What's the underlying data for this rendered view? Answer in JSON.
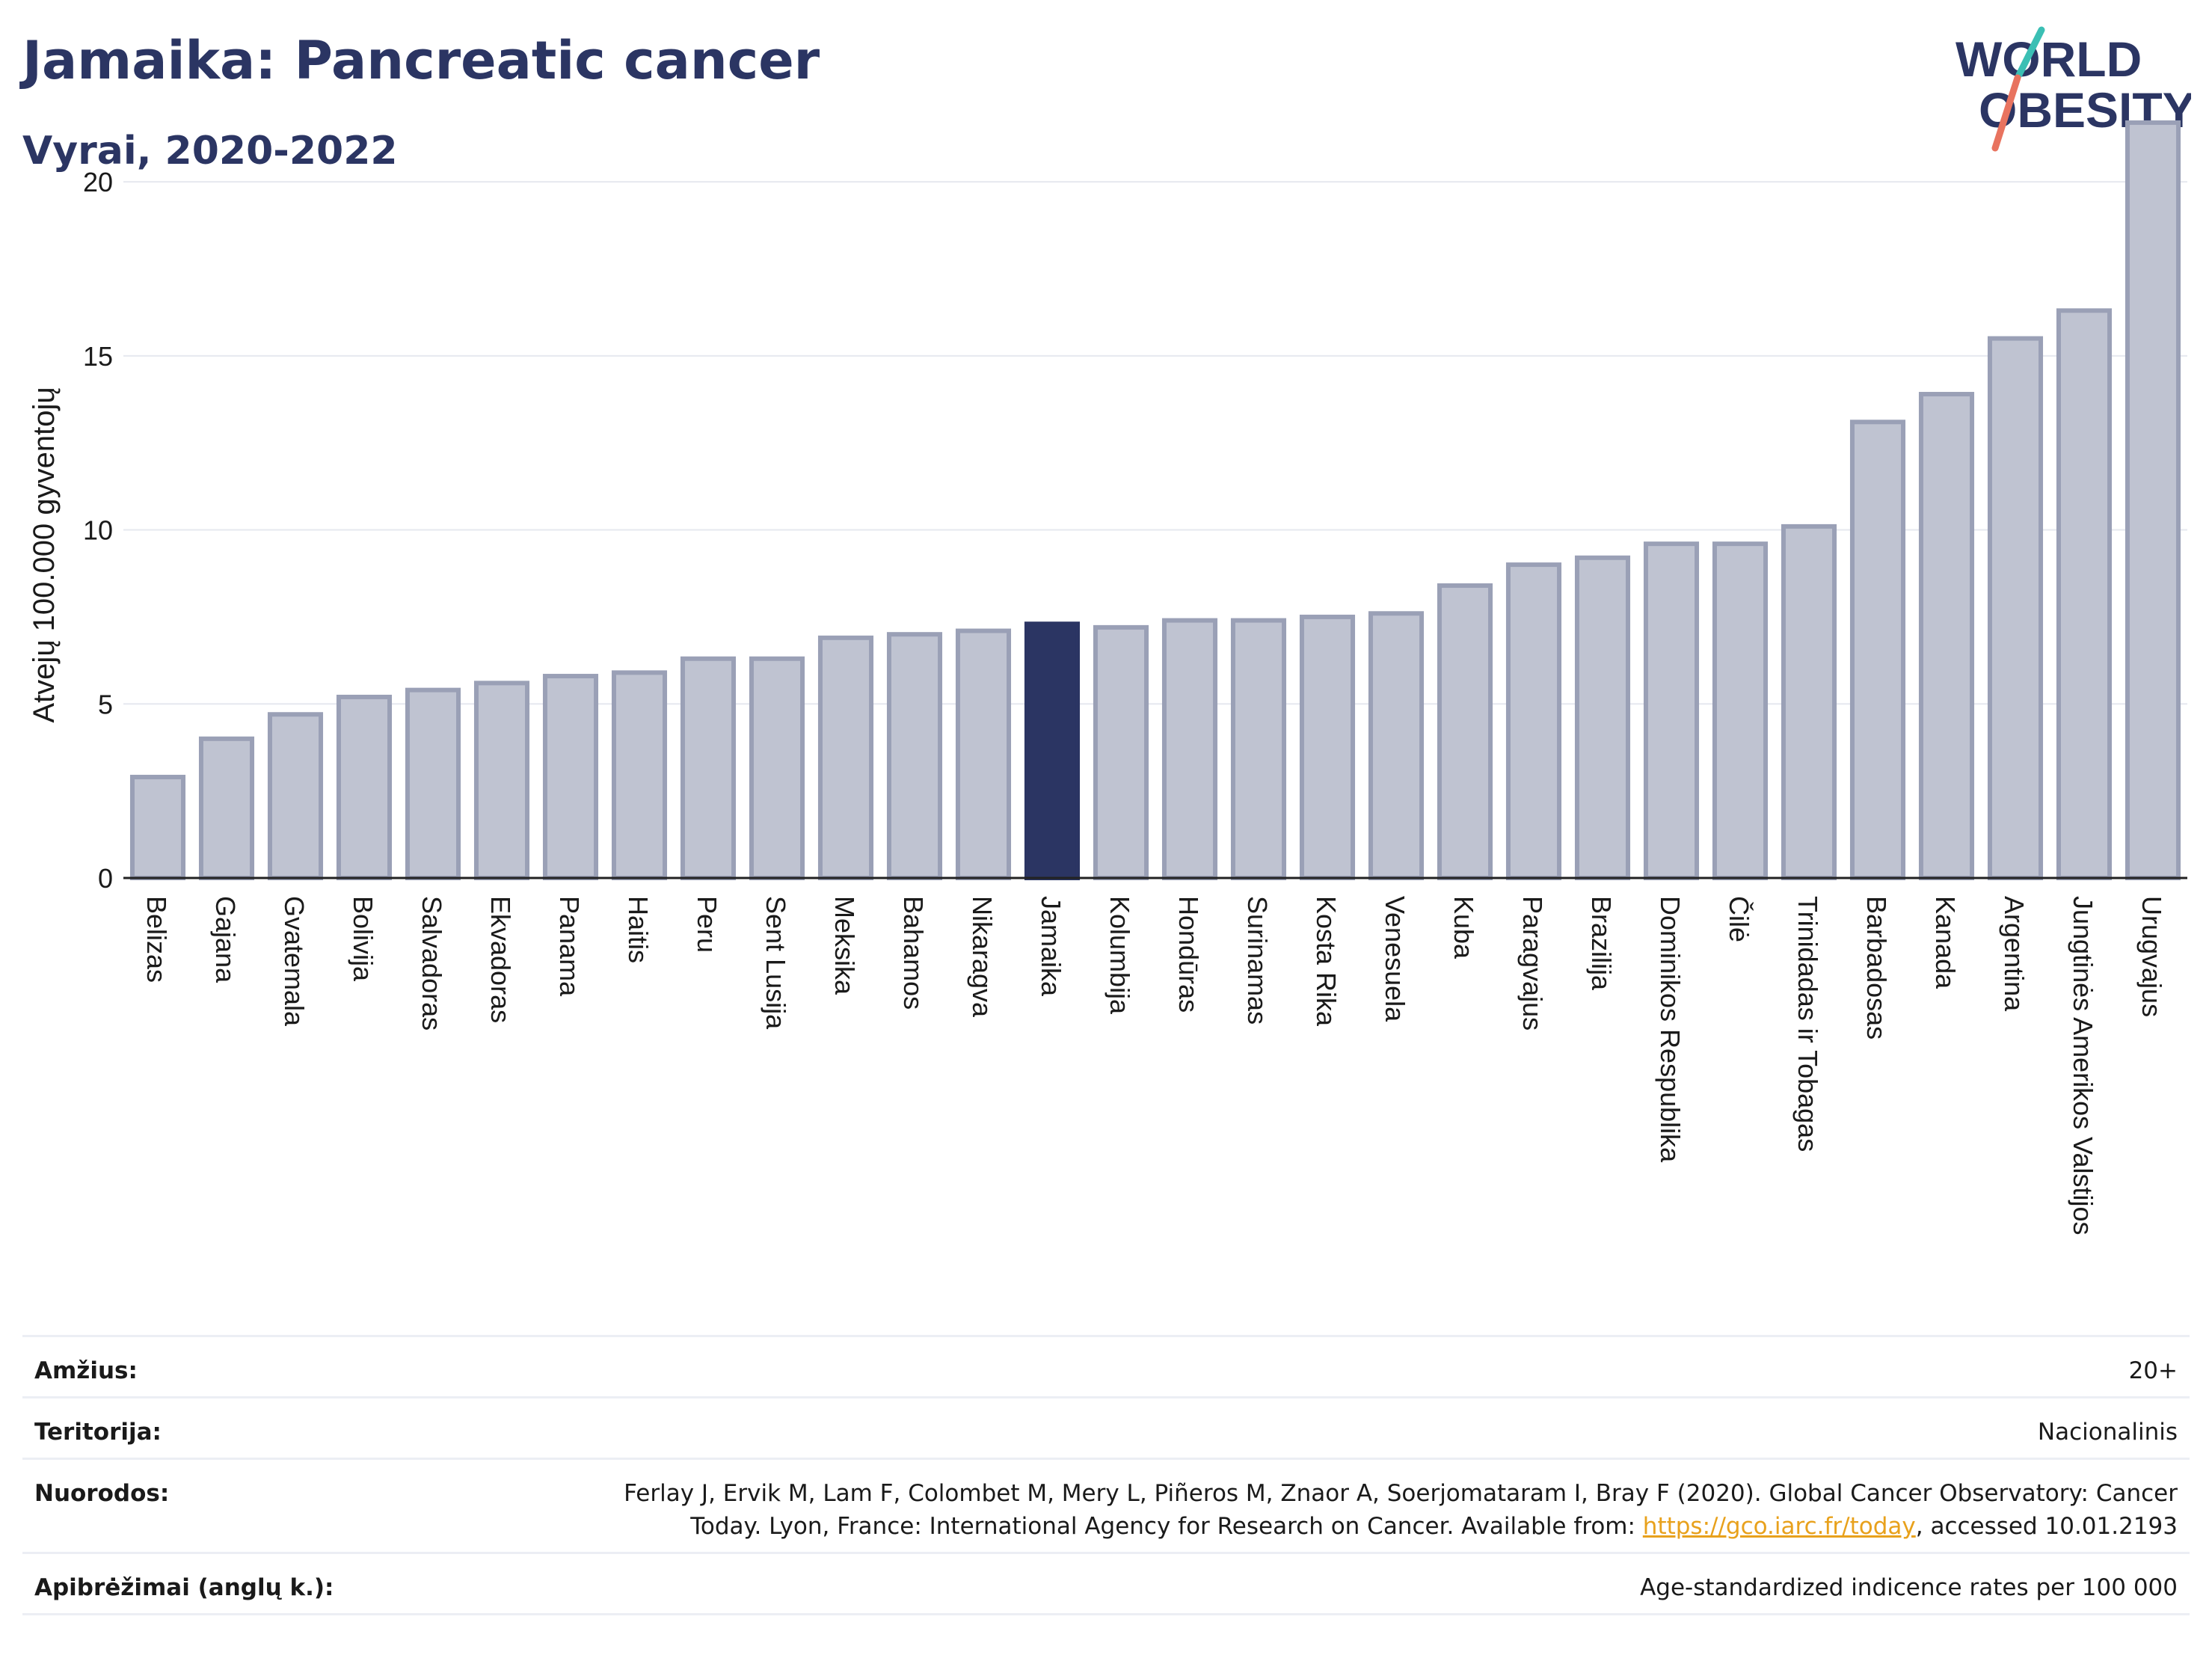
{
  "title": "Jamaika: Pancreatic cancer",
  "subtitle": "Vyrai, 2020-2022",
  "logo": {
    "line1": "WORLD",
    "line2": "OBESITY"
  },
  "colors": {
    "bar": "#bfc3d1",
    "bar_stroke": "#9aa0b6",
    "highlight": "#2b3563",
    "accent_teal": "#3bbfb4",
    "accent_red": "#e8735f"
  },
  "chart_data": {
    "type": "bar",
    "ylabel": "Atvejų 100.000 gyventojų",
    "ylim": [
      0,
      22
    ],
    "yticks": [
      0,
      5,
      10,
      15,
      20
    ],
    "highlight": "Jamaika",
    "categories": [
      "Belizas",
      "Gajana",
      "Gvatemala",
      "Bolivija",
      "Salvadoras",
      "Ekvadoras",
      "Panama",
      "Haitis",
      "Peru",
      "Sent Lusija",
      "Meksika",
      "Bahamos",
      "Nikaragva",
      "Jamaika",
      "Kolumbija",
      "Hondūras",
      "Surinamas",
      "Kosta Rika",
      "Venesuela",
      "Kuba",
      "Paragvajus",
      "Brazilija",
      "Dominikos Respublika",
      "Čilė",
      "Trinidadas ir Tobagas",
      "Barbadosas",
      "Kanada",
      "Argentina",
      "Jungtinės Amerikos Valstijos",
      "Urugvajus"
    ],
    "values": [
      2.9,
      4.0,
      4.7,
      5.2,
      5.4,
      5.6,
      5.8,
      5.9,
      6.3,
      6.3,
      6.9,
      7.0,
      7.1,
      7.3,
      7.2,
      7.4,
      7.4,
      7.5,
      7.6,
      8.4,
      9.0,
      9.2,
      9.6,
      9.6,
      10.1,
      13.1,
      13.9,
      15.5,
      16.3,
      21.7
    ]
  },
  "meta": {
    "age_label": "Amžius:",
    "age_value": "20+",
    "territory_label": "Teritorija:",
    "territory_value": "Nacionalinis",
    "refs_label": "Nuorodos:",
    "refs_line1": "Ferlay J, Ervik M, Lam F, Colombet M, Mery L, Piñeros M, Znaor A, Soerjomataram I, Bray F (2020). Global Cancer Observatory: Cancer",
    "refs_line2_pre": "Today. Lyon, France: International Agency for Research on Cancer. Available from: ",
    "refs_link": "https://gco.iarc.fr/today",
    "refs_line2_post": ", accessed 10.01.2193",
    "defs_label": "Apibrėžimai (anglų k.):",
    "defs_value": "Age-standardized indicence rates per 100 000"
  }
}
